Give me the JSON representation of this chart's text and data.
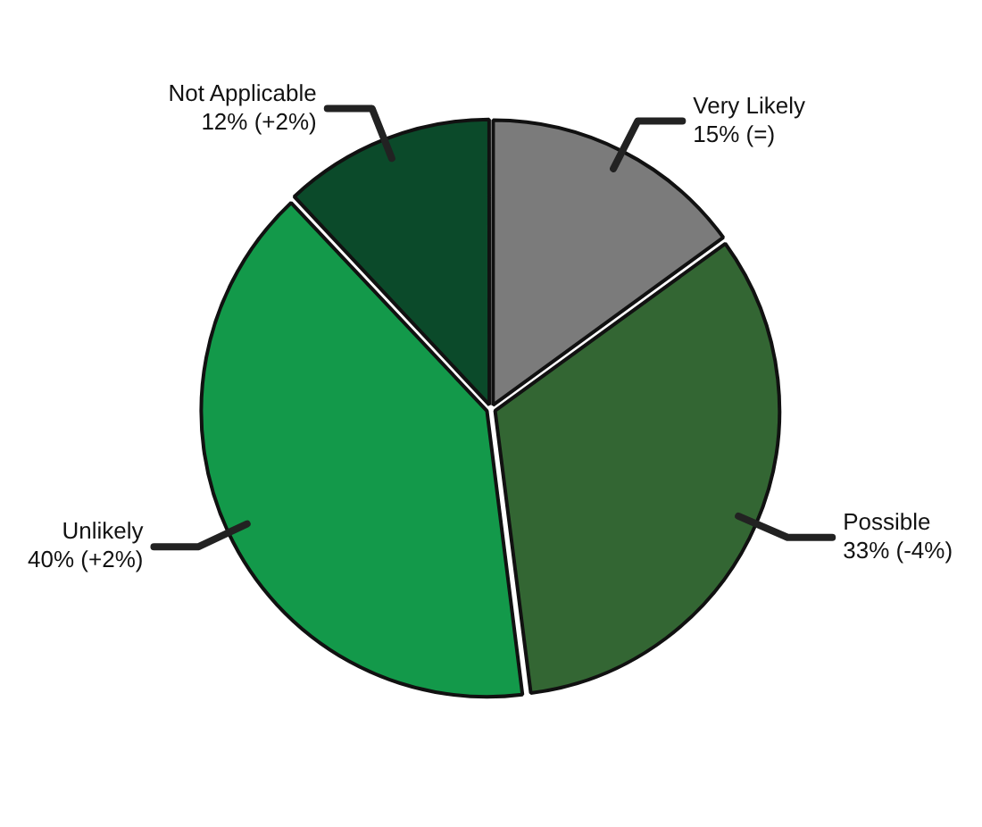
{
  "chart_data": {
    "type": "pie",
    "categories": [
      "Very Likely",
      "Possible",
      "Unlikely",
      "Not Applicable"
    ],
    "values": [
      15,
      33,
      40,
      12
    ],
    "colors": [
      "#7b7b7b",
      "#336633",
      "#13994a",
      "#0b4a2a"
    ],
    "value_labels": [
      "15% (=)",
      "33% (-4%)",
      "40% (+2%)",
      "12% (+2%)"
    ],
    "legend": false
  }
}
